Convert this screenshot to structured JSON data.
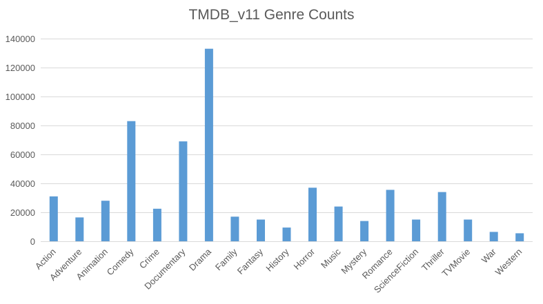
{
  "chart_data": {
    "type": "bar",
    "title": "TMDB_v11 Genre Counts",
    "xlabel": "",
    "ylabel": "",
    "ylim": [
      0,
      140000
    ],
    "yticks": [
      "0",
      "20000",
      "40000",
      "60000",
      "80000",
      "100000",
      "120000",
      "140000"
    ],
    "grid": true,
    "legend": "none",
    "bar_color": "#5b9bd5",
    "categories": [
      "Action",
      "Adventure",
      "Animation",
      "Comedy",
      "Crime",
      "Documentary",
      "Drama",
      "Family",
      "Fantasy",
      "History",
      "Horror",
      "Music",
      "Mystery",
      "Romance",
      "ScienceFiction",
      "Thriller",
      "TVMovie",
      "War",
      "Western"
    ],
    "values": [
      31000,
      16500,
      28000,
      83000,
      22500,
      69000,
      133000,
      17000,
      15000,
      9500,
      37000,
      24000,
      14000,
      35500,
      15000,
      34000,
      15000,
      6500,
      5500
    ]
  }
}
